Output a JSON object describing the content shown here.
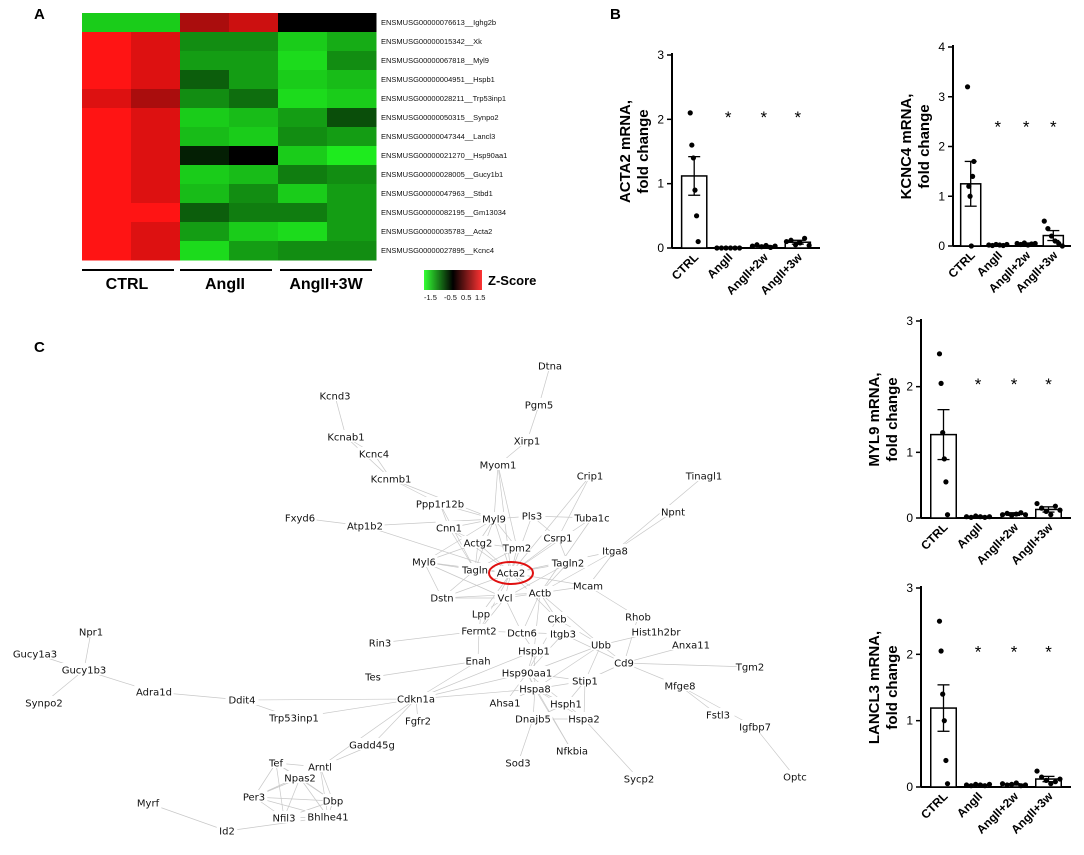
{
  "panels": {
    "a": "A",
    "b": "B",
    "c": "C"
  },
  "heatmap": {
    "groups": [
      "CTRL",
      "AngII",
      "AngII+3W"
    ],
    "genes": [
      "ENSMUSG00000076613__Ighg2b",
      "ENSMUSG00000015342__Xk",
      "ENSMUSG00000067818__Myl9",
      "ENSMUSG00000004951__Hspb1",
      "ENSMUSG00000028211__Trp53inp1",
      "ENSMUSG00000050315__Synpo2",
      "ENSMUSG00000047344__Lancl3",
      "ENSMUSG00000021270__Hsp90aa1",
      "ENSMUSG00000028005__Gucy1b1",
      "ENSMUSG00000047963__Stbd1",
      "ENSMUSG00000082195__Gm13034",
      "ENSMUSG00000035783__Acta2",
      "ENSMUSG00000027895__Kcnc4"
    ],
    "z": [
      [
        -1.3,
        -1.3,
        1.0,
        1.2,
        0.0,
        0.0
      ],
      [
        1.5,
        1.3,
        -0.9,
        -0.9,
        -1.3,
        -1.1
      ],
      [
        1.5,
        1.3,
        -1.0,
        -1.0,
        -1.4,
        -0.9
      ],
      [
        1.5,
        1.3,
        -0.6,
        -1.0,
        -1.3,
        -1.2
      ],
      [
        1.3,
        1.0,
        -0.9,
        -0.7,
        -1.4,
        -1.3
      ],
      [
        1.5,
        1.3,
        -1.3,
        -1.2,
        -1.0,
        -0.5
      ],
      [
        1.5,
        1.3,
        -1.2,
        -1.3,
        -0.9,
        -1.0
      ],
      [
        1.5,
        1.3,
        -0.2,
        0.0,
        -1.3,
        -1.6
      ],
      [
        1.5,
        1.3,
        -1.3,
        -1.2,
        -0.8,
        -0.9
      ],
      [
        1.5,
        1.3,
        -1.2,
        -0.9,
        -1.3,
        -1.0
      ],
      [
        1.5,
        1.5,
        -0.6,
        -0.8,
        -0.8,
        -1.0
      ],
      [
        1.5,
        1.3,
        -1.0,
        -1.3,
        -1.4,
        -1.0
      ],
      [
        1.5,
        1.3,
        -1.4,
        -1.0,
        -0.9,
        -0.9
      ]
    ],
    "colorbar": {
      "label": "Z-Score",
      "ticks": [
        "-1.5",
        "-0.5",
        "0.5",
        "1.5"
      ],
      "low": "#33ff33",
      "mid": "#000000",
      "high": "#ff3333"
    }
  },
  "chart_data": [
    {
      "type": "bar",
      "title": "",
      "ylabel": "ACTA2 mRNA, fold change",
      "categories": [
        "CTRL",
        "AngII",
        "AngII+2w",
        "AngII+3w"
      ],
      "values": [
        1.12,
        0.01,
        0.03,
        0.09
      ],
      "sem": [
        0.3,
        0.0,
        0.01,
        0.03
      ],
      "points": [
        [
          2.1,
          1.6,
          1.4,
          0.9,
          0.5,
          0.1
        ],
        [
          0.0,
          0.0,
          0.0,
          0.0,
          0.0,
          0.0
        ],
        [
          0.03,
          0.05,
          0.02,
          0.04,
          0.01,
          0.03
        ],
        [
          0.1,
          0.12,
          0.05,
          0.08,
          0.15,
          0.04
        ]
      ],
      "significance": [
        "",
        "*",
        "*",
        "*"
      ],
      "ylim": [
        0,
        3
      ],
      "yticks": [
        "0",
        "1",
        "2",
        "3"
      ]
    },
    {
      "type": "bar",
      "title": "",
      "ylabel": "KCNC4 mRNA, fold change",
      "categories": [
        "CTRL",
        "AngII",
        "AngII+2w",
        "AngII+3w"
      ],
      "values": [
        1.25,
        0.02,
        0.04,
        0.21
      ],
      "sem": [
        0.45,
        0.01,
        0.02,
        0.1
      ],
      "points": [
        [
          3.2,
          1.2,
          1.0,
          0.0,
          1.4,
          1.7
        ],
        [
          0.02,
          0.01,
          0.03,
          0.02,
          0.01,
          0.03
        ],
        [
          0.05,
          0.03,
          0.06,
          0.02,
          0.04,
          0.05
        ],
        [
          0.5,
          0.35,
          0.2,
          0.1,
          0.05,
          0.0
        ]
      ],
      "significance": [
        "",
        "*",
        "*",
        "*"
      ],
      "ylim": [
        0,
        4
      ],
      "yticks": [
        "0",
        "1",
        "2",
        "3",
        "4"
      ]
    },
    {
      "type": "bar",
      "title": "",
      "ylabel": "MYL9 mRNA, fold change",
      "categories": [
        "CTRL",
        "AngII",
        "AngII+2w",
        "AngII+3w"
      ],
      "values": [
        1.27,
        0.02,
        0.06,
        0.13
      ],
      "sem": [
        0.38,
        0.01,
        0.02,
        0.04
      ],
      "points": [
        [
          2.5,
          2.05,
          1.3,
          0.9,
          0.55,
          0.05
        ],
        [
          0.02,
          0.01,
          0.03,
          0.02,
          0.01,
          0.02
        ],
        [
          0.05,
          0.07,
          0.04,
          0.06,
          0.08,
          0.05
        ],
        [
          0.22,
          0.15,
          0.1,
          0.05,
          0.18,
          0.12
        ]
      ],
      "significance": [
        "",
        "*",
        "*",
        "*"
      ],
      "ylim": [
        0,
        3
      ],
      "yticks": [
        "0",
        "1",
        "2",
        "3"
      ]
    },
    {
      "type": "bar",
      "title": "",
      "ylabel": "LANCL3 mRNA, fold change",
      "categories": [
        "CTRL",
        "AngII",
        "AngII+2w",
        "AngII+3w"
      ],
      "values": [
        1.19,
        0.03,
        0.04,
        0.12
      ],
      "sem": [
        0.35,
        0.01,
        0.01,
        0.04
      ],
      "points": [
        [
          2.5,
          2.05,
          1.4,
          1.0,
          0.4,
          0.05
        ],
        [
          0.03,
          0.02,
          0.04,
          0.03,
          0.02,
          0.04
        ],
        [
          0.05,
          0.03,
          0.04,
          0.06,
          0.02,
          0.03
        ],
        [
          0.24,
          0.15,
          0.1,
          0.05,
          0.08,
          0.12
        ]
      ],
      "significance": [
        "",
        "*",
        "*",
        "*"
      ],
      "ylim": [
        0,
        3
      ],
      "yticks": [
        "0",
        "1",
        "2",
        "3"
      ]
    }
  ],
  "network": {
    "nodes": [
      "Dtna",
      "Pgm5",
      "Xirp1",
      "Kcnd3",
      "Kcnab1",
      "Kcnc4",
      "Myom1",
      "Crip1",
      "Tinagl1",
      "Kcnmb1",
      "Ppp1r12b",
      "Npnt",
      "Fxyd6",
      "Atp1b2",
      "Myl9",
      "Pls3",
      "Tuba1c",
      "Cnn1",
      "Csrp1",
      "Actg2",
      "Tpm2",
      "Itga8",
      "Myl6",
      "Tagln",
      "Acta2",
      "Tagln2",
      "Dstn",
      "Vcl",
      "Actb",
      "Mcam",
      "Lpp",
      "Rhob",
      "Fermt2",
      "Dctn6",
      "Ckb",
      "Hist1h2br",
      "Npr1",
      "Rin3",
      "Itgb3",
      "Ubb",
      "Anxa11",
      "Gucy1a3",
      "Hspb1",
      "Cd9",
      "Tgm2",
      "Gucy1b3",
      "Tes",
      "Enah",
      "Hsp90aa1",
      "Stip1",
      "Mfge8",
      "Synpo2",
      "Adra1d",
      "Ddit4",
      "Cdkn1a",
      "Hspa8",
      "Fstl3",
      "Trp53inp1",
      "Ahsa1",
      "Hsph1",
      "Igfbp7",
      "Fgfr2",
      "Dnajb5",
      "Hspa2",
      "Gadd45g",
      "Nfkbia",
      "Tef",
      "Arntl",
      "Sod3",
      "Sycp2",
      "Optc",
      "Npas2",
      "Per3",
      "Dbp",
      "Myrf",
      "Nfil3",
      "Bhlhe41",
      "Id2"
    ],
    "highlight": "Acta2"
  }
}
